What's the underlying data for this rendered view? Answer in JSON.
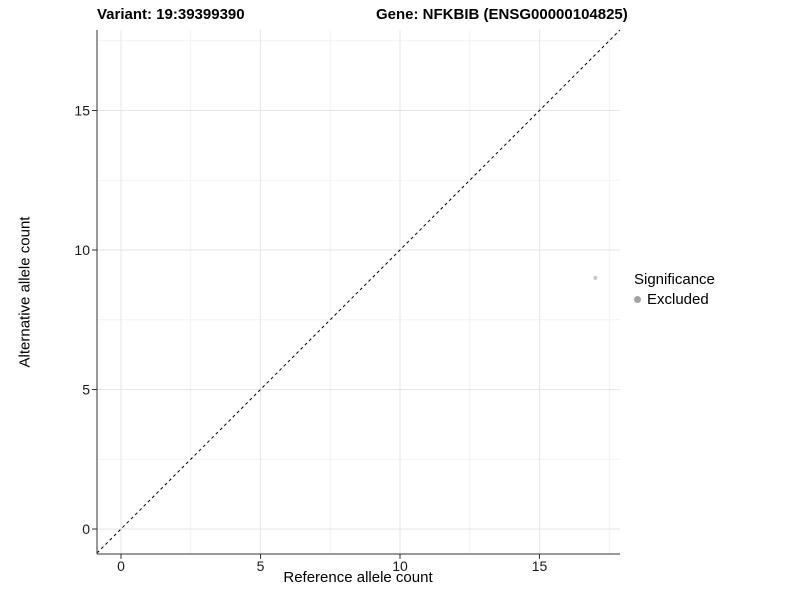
{
  "header": {
    "title_left": "Variant: 19:39399390",
    "title_right": "Gene: NFKBIB (ENSG00000104825)"
  },
  "chart_data": {
    "type": "scatter",
    "xlabel": "Reference allele count",
    "ylabel": "Alternative allele count",
    "x_ticks": [
      0,
      5,
      10,
      15
    ],
    "y_ticks": [
      0,
      5,
      10,
      15
    ],
    "x_minor_ticks": [
      2.5,
      7.5,
      12.5,
      17.5
    ],
    "y_minor_ticks": [
      2.5,
      7.5,
      12.5,
      17.5
    ],
    "xlim": [
      -0.86,
      17.89
    ],
    "ylim": [
      -0.9,
      17.89
    ],
    "grid": true,
    "reference_line": {
      "type": "identity",
      "style": "dashed",
      "color": "#000000"
    },
    "series": [
      {
        "name": "Excluded",
        "color": "#c9c9c9",
        "points": [
          {
            "x": 17,
            "y": 9
          }
        ]
      }
    ],
    "legend": {
      "title": "Significance",
      "position": "right",
      "entries": [
        {
          "label": "Excluded",
          "color": "#a3a3a3"
        }
      ]
    },
    "colors": {
      "axis_line": "#333333",
      "tick_mark": "#333333",
      "grid_major": "#e6e6e6",
      "grid_minor": "#f2f2f2",
      "tick_label": "#1a1a1a",
      "background": "#ffffff"
    }
  }
}
